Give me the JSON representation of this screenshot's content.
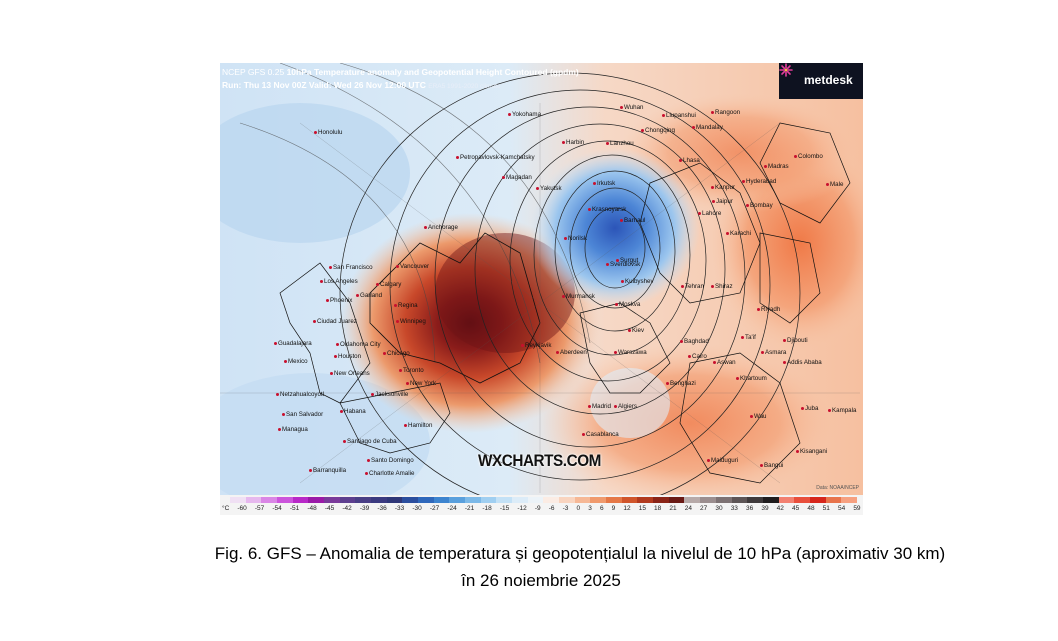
{
  "header": {
    "model": "NCEP GFS 0.25",
    "product": "10hPa Temperature anomaly and Geopotential Height Contoured (gpdm)",
    "run_valid": "Run: Thu 13 Nov 00Z Valid: Wed 26 Nov 12:00 UTC",
    "climate": "ERA5 1991-2020 climate"
  },
  "logo": {
    "name": "metdesk"
  },
  "watermark": "WXCHARTS.COM",
  "credit": "Data: NOAA/NCEP",
  "colorbar": {
    "unit": "°C",
    "ticks": [
      "-60",
      "-57",
      "-54",
      "-51",
      "-48",
      "-45",
      "-42",
      "-39",
      "-36",
      "-33",
      "-30",
      "-27",
      "-24",
      "-21",
      "-18",
      "-15",
      "-12",
      "-9",
      "-6",
      "-3",
      "0",
      "3",
      "6",
      "9",
      "12",
      "15",
      "18",
      "21",
      "24",
      "27",
      "30",
      "33",
      "36",
      "39",
      "42",
      "45",
      "48",
      "51",
      "54",
      "59"
    ],
    "colors": [
      "#f0e0f4",
      "#e6b8ee",
      "#da86e6",
      "#cc55dc",
      "#b829c8",
      "#9a1aa8",
      "#7a3a9a",
      "#5d3f8f",
      "#4a3f86",
      "#3b3a80",
      "#2f3778",
      "#2b4e9e",
      "#2f68bb",
      "#3d84cf",
      "#5aa0dd",
      "#7cb9e8",
      "#a0cff1",
      "#c3e1f6",
      "#dcecf8",
      "#ecf3f8",
      "#fbece4",
      "#f9d4bf",
      "#f6b896",
      "#f09a6d",
      "#e57847",
      "#d0552b",
      "#b23a1e",
      "#8a2417",
      "#6a1a15",
      "#b7aaa9",
      "#9b8e8f",
      "#7d7273",
      "#5d5556",
      "#3f3a3b",
      "#201d1e",
      "#f28070",
      "#e84f3c",
      "#d6261c",
      "#e8744c",
      "#f6a080"
    ]
  },
  "cities": [
    {
      "name": "Honolulu"
    },
    {
      "name": "Yokohama"
    },
    {
      "name": "Wuhan"
    },
    {
      "name": "Liupanshui"
    },
    {
      "name": "Rangoon"
    },
    {
      "name": "Chongqing"
    },
    {
      "name": "Mandalay"
    },
    {
      "name": "Harbin"
    },
    {
      "name": "Lanzhou"
    },
    {
      "name": "Lhasa"
    },
    {
      "name": "Petropavlovsk-Kamchatsky"
    },
    {
      "name": "Madras"
    },
    {
      "name": "Colombo"
    },
    {
      "name": "Magadan"
    },
    {
      "name": "Kanpur"
    },
    {
      "name": "Hyderabad"
    },
    {
      "name": "Male"
    },
    {
      "name": "Yakutsk"
    },
    {
      "name": "Irkutsk"
    },
    {
      "name": "Jaipur"
    },
    {
      "name": "Bombay"
    },
    {
      "name": "Lahore"
    },
    {
      "name": "Krasnoyarsk"
    },
    {
      "name": "Barnaul"
    },
    {
      "name": "Karachi"
    },
    {
      "name": "Anchorage"
    },
    {
      "name": "Norilsk"
    },
    {
      "name": "Surgut"
    },
    {
      "name": "Sverdlovsk"
    },
    {
      "name": "San Francisco"
    },
    {
      "name": "Vancouver"
    },
    {
      "name": "Los Angeles"
    },
    {
      "name": "Calgary"
    },
    {
      "name": "Kuibyshev"
    },
    {
      "name": "Tehran"
    },
    {
      "name": "Shiraz"
    },
    {
      "name": "Phoenix"
    },
    {
      "name": "Garland"
    },
    {
      "name": "Regina"
    },
    {
      "name": "Murmansk"
    },
    {
      "name": "Moskva"
    },
    {
      "name": "Riyadh"
    },
    {
      "name": "Ciudad Juarez"
    },
    {
      "name": "Winnipeg"
    },
    {
      "name": "Reykjavik"
    },
    {
      "name": "Kiev"
    },
    {
      "name": "Baghdad"
    },
    {
      "name": "Ta'if"
    },
    {
      "name": "Guadalajara"
    },
    {
      "name": "Oklahoma City"
    },
    {
      "name": "Aberdeen"
    },
    {
      "name": "Warszawa"
    },
    {
      "name": "Cairo"
    },
    {
      "name": "Djibouti"
    },
    {
      "name": "Mexico"
    },
    {
      "name": "Houston"
    },
    {
      "name": "Chicago"
    },
    {
      "name": "Toronto"
    },
    {
      "name": "Aswan"
    },
    {
      "name": "Asmara"
    },
    {
      "name": "Addis Ababa"
    },
    {
      "name": "New Orleans"
    },
    {
      "name": "New York"
    },
    {
      "name": "Benghazi"
    },
    {
      "name": "Khartoum"
    },
    {
      "name": "Netzahualcoyotl"
    },
    {
      "name": "Jacksonville"
    },
    {
      "name": "Madrid"
    },
    {
      "name": "Algiers"
    },
    {
      "name": "San Salvador"
    },
    {
      "name": "Habana"
    },
    {
      "name": "Wau"
    },
    {
      "name": "Juba"
    },
    {
      "name": "Kampala"
    },
    {
      "name": "Managua"
    },
    {
      "name": "Hamilton"
    },
    {
      "name": "Casablanca"
    },
    {
      "name": "Santiago de Cuba"
    },
    {
      "name": "Santo Domingo"
    },
    {
      "name": "Kisangani"
    },
    {
      "name": "Maiduguri"
    },
    {
      "name": "Barranquilla"
    },
    {
      "name": "Charlotte Amalie"
    },
    {
      "name": "Bangui"
    }
  ],
  "caption": {
    "line1": "Fig. 6. GFS – Anomalia de temperatura și geopotențialul la nivelul de 10 hPa (aproximativ 30 km)",
    "line2": "în 26 noiembrie 2025"
  }
}
